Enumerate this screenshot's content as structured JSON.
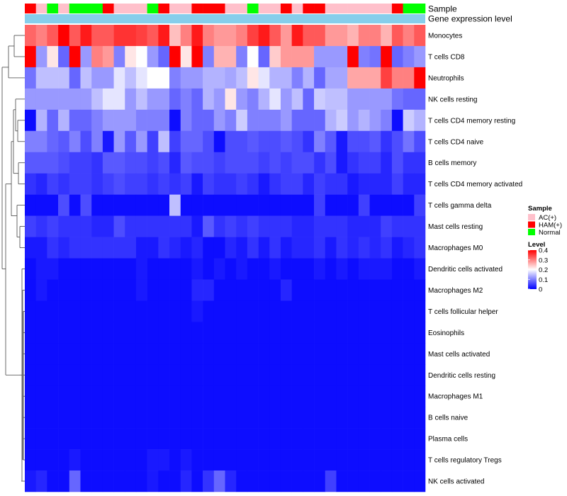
{
  "chart_data": {
    "type": "heatmap",
    "title": "",
    "annotation_titles": [
      "Sample",
      "Gene expression level"
    ],
    "rows": [
      "Monocytes",
      "T cells CD8",
      "Neutrophils",
      "NK cells resting",
      "T cells CD4 memory resting",
      "T cells CD4 naive",
      "B cells memory",
      "T cells CD4 memory activated",
      "T cells gamma delta",
      "Mast cells resting",
      "Macrophages M0",
      "Dendritic cells activated",
      "Macrophages M2",
      "T cells follicular helper",
      "Eosinophils",
      "Mast cells activated",
      "Dendritic cells resting",
      "Macrophages M1",
      "B cells naive",
      "Plasma cells",
      "T cells regulatory  Tregs",
      "NK cells activated"
    ],
    "sample_groups": [
      "HAM(+)",
      "AC(+)",
      "Normal",
      "AC(+)",
      "Normal",
      "Normal",
      "Normal",
      "HAM(+)",
      "AC(+)",
      "AC(+)",
      "AC(+)",
      "Normal",
      "HAM(+)",
      "AC(+)",
      "AC(+)",
      "HAM(+)",
      "HAM(+)",
      "HAM(+)",
      "AC(+)",
      "AC(+)",
      "Normal",
      "AC(+)",
      "AC(+)",
      "HAM(+)",
      "AC(+)",
      "HAM(+)",
      "HAM(+)",
      "AC(+)",
      "AC(+)",
      "AC(+)",
      "AC(+)",
      "AC(+)",
      "AC(+)",
      "HAM(+)",
      "Normal",
      "Normal"
    ],
    "sample_colors": {
      "AC(+)": "#FFC0CB",
      "HAM(+)": "#FF0000",
      "Normal": "#00FF00"
    },
    "matrix": [
      [
        0.32,
        0.3,
        0.33,
        0.4,
        0.33,
        0.38,
        0.33,
        0.33,
        0.36,
        0.36,
        0.35,
        0.33,
        0.38,
        0.25,
        0.3,
        0.38,
        0.3,
        0.28,
        0.28,
        0.3,
        0.35,
        0.38,
        0.33,
        0.28,
        0.38,
        0.33,
        0.33,
        0.28,
        0.28,
        0.26,
        0.3,
        0.3,
        0.26,
        0.33,
        0.3,
        0.33
      ],
      [
        0.4,
        0.12,
        0.22,
        0.08,
        0.4,
        0.12,
        0.3,
        0.28,
        0.1,
        0.22,
        0.2,
        0.12,
        0.08,
        0.4,
        0.22,
        0.4,
        0.1,
        0.26,
        0.26,
        0.1,
        0.2,
        0.08,
        0.24,
        0.28,
        0.28,
        0.28,
        0.12,
        0.12,
        0.12,
        0.4,
        0.1,
        0.09,
        0.4,
        0.08,
        0.1,
        0.12
      ],
      [
        0.09,
        0.15,
        0.15,
        0.15,
        0.08,
        0.15,
        0.12,
        0.12,
        0.18,
        0.15,
        0.18,
        0.2,
        0.2,
        0.1,
        0.12,
        0.12,
        0.14,
        0.14,
        0.13,
        0.15,
        0.22,
        0.18,
        0.14,
        0.14,
        0.1,
        0.14,
        0.08,
        0.13,
        0.13,
        0.27,
        0.27,
        0.27,
        0.35,
        0.3,
        0.3,
        0.4
      ],
      [
        0.12,
        0.12,
        0.12,
        0.12,
        0.12,
        0.12,
        0.15,
        0.18,
        0.18,
        0.12,
        0.15,
        0.12,
        0.12,
        0.08,
        0.1,
        0.08,
        0.14,
        0.12,
        0.22,
        0.12,
        0.1,
        0.14,
        0.18,
        0.12,
        0.15,
        0.08,
        0.16,
        0.15,
        0.15,
        0.12,
        0.12,
        0.12,
        0.12,
        0.09,
        0.08,
        0.08
      ],
      [
        0.01,
        0.14,
        0.08,
        0.14,
        0.08,
        0.08,
        0.1,
        0.12,
        0.12,
        0.12,
        0.1,
        0.1,
        0.1,
        0.01,
        0.1,
        0.08,
        0.08,
        0.12,
        0.1,
        0.16,
        0.1,
        0.1,
        0.1,
        0.12,
        0.08,
        0.08,
        0.08,
        0.14,
        0.16,
        0.12,
        0.14,
        0.12,
        0.1,
        0.01,
        0.16,
        0.14
      ],
      [
        0.1,
        0.1,
        0.08,
        0.07,
        0.1,
        0.06,
        0.1,
        0.02,
        0.12,
        0.07,
        0.12,
        0.05,
        0.15,
        0.05,
        0.08,
        0.08,
        0.06,
        0.01,
        0.06,
        0.06,
        0.07,
        0.06,
        0.06,
        0.07,
        0.06,
        0.04,
        0.1,
        0.07,
        0.02,
        0.06,
        0.06,
        0.07,
        0.04,
        0.06,
        0.09,
        0.06
      ],
      [
        0.07,
        0.07,
        0.07,
        0.06,
        0.05,
        0.05,
        0.04,
        0.07,
        0.07,
        0.06,
        0.06,
        0.05,
        0.06,
        0.03,
        0.07,
        0.06,
        0.06,
        0.05,
        0.06,
        0.06,
        0.06,
        0.05,
        0.06,
        0.05,
        0.06,
        0.06,
        0.04,
        0.06,
        0.02,
        0.04,
        0.05,
        0.05,
        0.03,
        0.06,
        0.04,
        0.04
      ],
      [
        0.04,
        0.03,
        0.05,
        0.04,
        0.05,
        0.05,
        0.04,
        0.05,
        0.06,
        0.05,
        0.05,
        0.04,
        0.05,
        0.04,
        0.05,
        0.02,
        0.05,
        0.04,
        0.04,
        0.05,
        0.04,
        0.02,
        0.04,
        0.05,
        0.05,
        0.03,
        0.05,
        0.04,
        0.04,
        0.02,
        0.03,
        0.03,
        0.03,
        0.05,
        0.03,
        0.03
      ],
      [
        0.01,
        0.01,
        0.01,
        0.06,
        0.01,
        0.06,
        0.01,
        0.01,
        0.01,
        0.01,
        0.01,
        0.01,
        0.01,
        0.15,
        0.01,
        0.01,
        0.01,
        0.01,
        0.01,
        0.01,
        0.01,
        0.01,
        0.01,
        0.01,
        0.01,
        0.01,
        0.05,
        0.01,
        0.01,
        0.01,
        0.05,
        0.01,
        0.01,
        0.01,
        0.01,
        0.05
      ],
      [
        0.05,
        0.04,
        0.05,
        0.04,
        0.04,
        0.04,
        0.03,
        0.03,
        0.06,
        0.04,
        0.04,
        0.04,
        0.04,
        0.04,
        0.04,
        0.02,
        0.07,
        0.04,
        0.05,
        0.04,
        0.05,
        0.04,
        0.04,
        0.04,
        0.03,
        0.03,
        0.04,
        0.04,
        0.04,
        0.03,
        0.03,
        0.03,
        0.05,
        0.04,
        0.04,
        0.04
      ],
      [
        0.02,
        0.02,
        0.04,
        0.03,
        0.04,
        0.04,
        0.04,
        0.04,
        0.04,
        0.04,
        0.02,
        0.02,
        0.04,
        0.03,
        0.02,
        0.03,
        0.01,
        0.01,
        0.03,
        0.02,
        0.04,
        0.02,
        0.04,
        0.02,
        0.03,
        0.03,
        0.04,
        0.02,
        0.04,
        0.03,
        0.04,
        0.03,
        0.04,
        0.02,
        0.03,
        0.04
      ],
      [
        0.01,
        0.02,
        0.02,
        0.01,
        0.01,
        0.01,
        0.01,
        0.01,
        0.01,
        0.01,
        0.02,
        0.01,
        0.01,
        0.01,
        0.01,
        0.02,
        0.01,
        0.02,
        0.01,
        0.02,
        0.01,
        0.01,
        0.02,
        0.01,
        0.01,
        0.01,
        0.02,
        0.01,
        0.02,
        0.01,
        0.02,
        0.02,
        0.02,
        0.01,
        0.01,
        0.02
      ],
      [
        0.01,
        0.02,
        0.01,
        0.01,
        0.01,
        0.01,
        0.01,
        0.01,
        0.01,
        0.01,
        0.02,
        0.01,
        0.01,
        0.01,
        0.01,
        0.03,
        0.03,
        0.01,
        0.01,
        0.01,
        0.01,
        0.01,
        0.01,
        0.03,
        0.01,
        0.01,
        0.01,
        0.01,
        0.01,
        0.01,
        0.01,
        0.01,
        0.01,
        0.01,
        0.01,
        0.01
      ],
      [
        0.01,
        0.01,
        0.01,
        0.01,
        0.01,
        0.01,
        0.01,
        0.01,
        0.01,
        0.01,
        0.01,
        0.01,
        0.01,
        0.01,
        0.01,
        0.02,
        0.01,
        0.01,
        0.01,
        0.01,
        0.01,
        0.01,
        0.01,
        0.01,
        0.01,
        0.01,
        0.01,
        0.01,
        0.01,
        0.01,
        0.01,
        0.01,
        0.01,
        0.01,
        0.01,
        0.01
      ],
      [
        0.01,
        0.01,
        0.01,
        0.01,
        0.01,
        0.01,
        0.01,
        0.01,
        0.01,
        0.01,
        0.01,
        0.01,
        0.01,
        0.01,
        0.01,
        0.01,
        0.01,
        0.01,
        0.01,
        0.01,
        0.01,
        0.01,
        0.01,
        0.01,
        0.01,
        0.01,
        0.01,
        0.01,
        0.01,
        0.01,
        0.01,
        0.01,
        0.01,
        0.01,
        0.01,
        0.01
      ],
      [
        0.01,
        0.01,
        0.01,
        0.01,
        0.01,
        0.01,
        0.01,
        0.01,
        0.01,
        0.01,
        0.01,
        0.01,
        0.01,
        0.01,
        0.01,
        0.01,
        0.01,
        0.01,
        0.01,
        0.01,
        0.01,
        0.01,
        0.01,
        0.01,
        0.01,
        0.01,
        0.01,
        0.01,
        0.01,
        0.01,
        0.01,
        0.01,
        0.01,
        0.01,
        0.01,
        0.01
      ],
      [
        0.01,
        0.01,
        0.01,
        0.01,
        0.01,
        0.01,
        0.01,
        0.01,
        0.01,
        0.01,
        0.01,
        0.01,
        0.01,
        0.01,
        0.01,
        0.01,
        0.01,
        0.01,
        0.01,
        0.01,
        0.01,
        0.01,
        0.01,
        0.01,
        0.01,
        0.01,
        0.01,
        0.01,
        0.01,
        0.01,
        0.01,
        0.01,
        0.01,
        0.01,
        0.01,
        0.01
      ],
      [
        0.01,
        0.01,
        0.01,
        0.01,
        0.01,
        0.01,
        0.01,
        0.01,
        0.01,
        0.01,
        0.01,
        0.01,
        0.01,
        0.01,
        0.01,
        0.01,
        0.01,
        0.01,
        0.01,
        0.01,
        0.01,
        0.01,
        0.01,
        0.01,
        0.01,
        0.01,
        0.01,
        0.01,
        0.01,
        0.01,
        0.01,
        0.01,
        0.01,
        0.01,
        0.01,
        0.01
      ],
      [
        0.01,
        0.01,
        0.01,
        0.01,
        0.01,
        0.01,
        0.01,
        0.01,
        0.01,
        0.01,
        0.01,
        0.01,
        0.01,
        0.01,
        0.01,
        0.01,
        0.01,
        0.01,
        0.01,
        0.01,
        0.01,
        0.01,
        0.01,
        0.01,
        0.01,
        0.01,
        0.01,
        0.01,
        0.01,
        0.01,
        0.01,
        0.01,
        0.01,
        0.01,
        0.01,
        0.01
      ],
      [
        0.01,
        0.01,
        0.01,
        0.01,
        0.01,
        0.01,
        0.01,
        0.01,
        0.01,
        0.01,
        0.01,
        0.01,
        0.01,
        0.01,
        0.01,
        0.01,
        0.01,
        0.01,
        0.01,
        0.01,
        0.01,
        0.01,
        0.01,
        0.01,
        0.01,
        0.01,
        0.01,
        0.01,
        0.01,
        0.01,
        0.01,
        0.01,
        0.01,
        0.01,
        0.01,
        0.01
      ],
      [
        0.01,
        0.01,
        0.01,
        0.01,
        0.02,
        0.01,
        0.01,
        0.01,
        0.01,
        0.01,
        0.01,
        0.02,
        0.02,
        0.01,
        0.02,
        0.01,
        0.01,
        0.01,
        0.01,
        0.01,
        0.01,
        0.01,
        0.01,
        0.01,
        0.01,
        0.01,
        0.01,
        0.01,
        0.01,
        0.01,
        0.01,
        0.01,
        0.01,
        0.01,
        0.01,
        0.01
      ],
      [
        0.02,
        0.03,
        0.01,
        0.01,
        0.08,
        0.01,
        0.01,
        0.01,
        0.01,
        0.01,
        0.01,
        0.02,
        0.01,
        0.01,
        0.03,
        0.01,
        0.04,
        0.08,
        0.03,
        0.01,
        0.01,
        0.01,
        0.01,
        0.01,
        0.01,
        0.01,
        0.01,
        0.05,
        0.01,
        0.01,
        0.01,
        0.01,
        0.01,
        0.01,
        0.01,
        0.01
      ]
    ],
    "gene_expression_level_color": "#87CEEB",
    "color_scale": {
      "min": 0,
      "max": 0.4,
      "colors": [
        "#0000FF",
        "#FFFFFF",
        "#FF0000"
      ]
    },
    "legend": {
      "sample_title": "Sample",
      "sample_entries": [
        "AC(+)",
        "HAM(+)",
        "Normal"
      ],
      "level_title": "Level",
      "level_ticks": [
        "0.4",
        "0.3",
        "0.2",
        "0.1",
        "0"
      ],
      "level_tick_values": [
        0.4,
        0.3,
        0.2,
        0.1,
        0
      ],
      "position": "right"
    }
  }
}
